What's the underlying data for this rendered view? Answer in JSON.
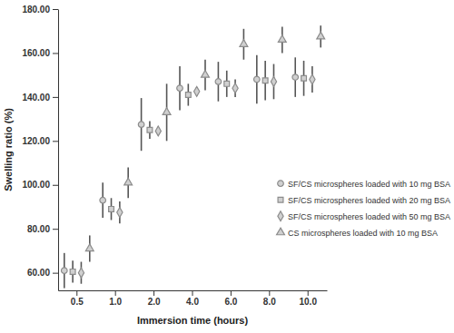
{
  "chart_data": {
    "type": "scatter",
    "x_label": "Immersion time (hours)",
    "y_label": "Swelling ratio (%)",
    "categories": [
      "0.5",
      "1.0",
      "2.0",
      "4.0",
      "6.0",
      "8.0",
      "10.0"
    ],
    "ylim": [
      52,
      180
    ],
    "yticks": [
      {
        "value": 60,
        "label": "60.00"
      },
      {
        "value": 80,
        "label": "80.00"
      },
      {
        "value": 100,
        "label": "100.00"
      },
      {
        "value": 120,
        "label": "120.00"
      },
      {
        "value": 140,
        "label": "140.00"
      },
      {
        "value": 160,
        "label": "160.00"
      },
      {
        "value": 180,
        "label": "180.00"
      }
    ],
    "grid": false,
    "legend": "right",
    "series": [
      {
        "name": "SF/CS microspheres loaded with 10 mg BSA",
        "color": "#8c8c8c",
        "marker": "circle",
        "values": [
          61,
          93,
          127.5,
          144,
          147,
          148,
          149
        ],
        "errors": [
          8,
          8,
          12,
          10,
          9,
          11,
          9
        ]
      },
      {
        "name": "SF/CS microspheres loaded with 20 mg BSA",
        "color": "#8c8c8c",
        "marker": "square",
        "values": [
          60.5,
          89,
          125,
          141,
          146,
          147.5,
          148.5
        ],
        "errors": [
          5,
          5,
          4,
          5,
          6,
          9,
          8
        ]
      },
      {
        "name": "SF/CS microspheres loaded with 50 mg BSA",
        "color": "#8c8c8c",
        "marker": "diamond",
        "values": [
          60,
          87.5,
          124.5,
          142.5,
          144,
          147,
          148
        ],
        "errors": [
          5,
          5,
          2,
          2,
          4,
          8,
          6
        ]
      },
      {
        "name": "CS microspheres loaded with 10 mg BSA",
        "color": "#8c8c8c",
        "marker": "triangle",
        "values": [
          71,
          101,
          133,
          150,
          164,
          166,
          167.5
        ],
        "errors": [
          6,
          7,
          13,
          7,
          7,
          6,
          5
        ]
      }
    ]
  }
}
